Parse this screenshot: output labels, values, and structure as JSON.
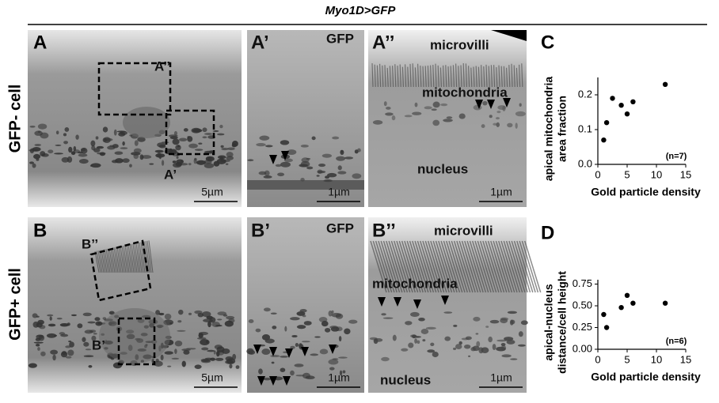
{
  "figure": {
    "title": "Myo1D>GFP",
    "rows": [
      "GFP- cell",
      "GFP+ cell"
    ]
  },
  "panels": [
    {
      "label": "A",
      "scale_bar": "5µm",
      "insets": [
        "A’’",
        "A’"
      ]
    },
    {
      "label": "A’",
      "tag": "GFP",
      "scale_bar": "1µm"
    },
    {
      "label": "A’’",
      "annotations": [
        "microvilli",
        "mitochondria",
        "nucleus"
      ],
      "scale_bar": "1µm"
    },
    {
      "label": "B",
      "scale_bar": "5µm",
      "insets": [
        "B’’",
        "B’"
      ]
    },
    {
      "label": "B’",
      "tag": "GFP",
      "scale_bar": "1µm"
    },
    {
      "label": "B’’",
      "annotations": [
        "microvilli",
        "mitochondria",
        "nucleus"
      ],
      "scale_bar": "1µm"
    }
  ],
  "chart_data": [
    {
      "type": "scatter",
      "panel": "C",
      "x": [
        1,
        1.5,
        2.5,
        4,
        5,
        6,
        11.5
      ],
      "values": [
        0.07,
        0.12,
        0.19,
        0.17,
        0.145,
        0.18,
        0.23
      ],
      "color": "#000000",
      "xlim": [
        0,
        15
      ],
      "xticks": [
        0,
        5,
        10,
        15
      ],
      "ylim": [
        0,
        0.25
      ],
      "yticks": [
        {
          "value": 0,
          "label": "0.0"
        },
        0.1,
        0.2
      ],
      "xlabel": "Gold particle density",
      "ylabel": [
        "apical mitochondria",
        "area fraction"
      ],
      "annotation": "(n=7)"
    },
    {
      "type": "scatter",
      "panel": "D",
      "x": [
        1,
        1.5,
        4,
        5,
        6,
        11.5
      ],
      "values": [
        0.4,
        0.25,
        0.48,
        0.62,
        0.53,
        0.53
      ],
      "color": "#000000",
      "xlim": [
        0,
        15
      ],
      "xticks": [
        0,
        5,
        10,
        15
      ],
      "ylim": [
        0,
        0.8
      ],
      "yticks": [
        {
          "value": 0,
          "label": "0.00"
        },
        0.25,
        {
          "value": 0.5,
          "label": "0.50"
        },
        0.75
      ],
      "xlabel": "Gold particle density",
      "ylabel": [
        "apical-nucleus",
        "distance/cell height"
      ],
      "annotation": "(n=6)"
    }
  ]
}
